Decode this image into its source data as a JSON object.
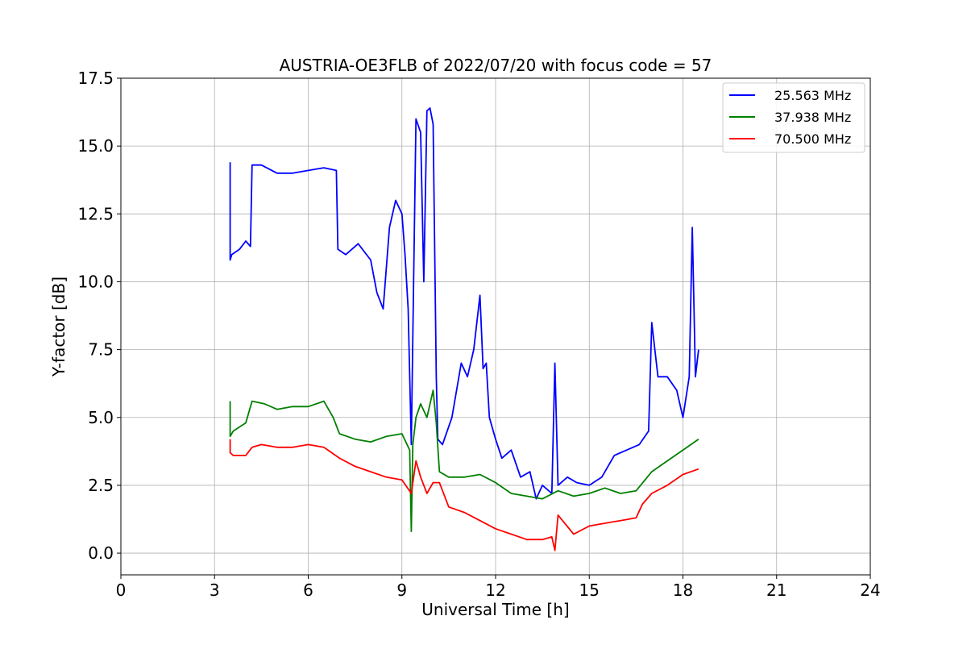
{
  "chart_data": {
    "type": "line",
    "title": "AUSTRIA-OE3FLB of 2022/07/20 with focus code = 57",
    "xlabel": "Universal Time [h]",
    "ylabel": "Y-factor [dB]",
    "xlim": [
      0,
      24
    ],
    "ylim": [
      -0.8,
      17.5
    ],
    "xticks": [
      0,
      3,
      6,
      9,
      12,
      15,
      18,
      21,
      24
    ],
    "yticks": [
      0.0,
      2.5,
      5.0,
      7.5,
      10.0,
      12.5,
      15.0,
      17.5
    ],
    "xtick_labels": [
      "0",
      "3",
      "6",
      "9",
      "12",
      "15",
      "18",
      "21",
      "24"
    ],
    "ytick_labels": [
      "0.0",
      "2.5",
      "5.0",
      "7.5",
      "10.0",
      "12.5",
      "15.0",
      "17.5"
    ],
    "grid": true,
    "legend_position": "top-right",
    "series": [
      {
        "name": "25.563 MHz",
        "color": "#0000ff",
        "x": [
          3.5,
          3.5,
          3.55,
          3.8,
          4.0,
          4.15,
          4.2,
          4.5,
          5.0,
          5.5,
          6.0,
          6.5,
          6.9,
          6.95,
          7.2,
          7.6,
          8.0,
          8.2,
          8.4,
          8.6,
          8.8,
          9.0,
          9.1,
          9.2,
          9.3,
          9.35,
          9.45,
          9.6,
          9.7,
          9.8,
          9.9,
          10.0,
          10.1,
          10.15,
          10.3,
          10.6,
          10.9,
          11.1,
          11.3,
          11.5,
          11.6,
          11.7,
          11.8,
          12.0,
          12.2,
          12.5,
          12.8,
          13.1,
          13.3,
          13.5,
          13.8,
          13.9,
          14.0,
          14.3,
          14.6,
          15.0,
          15.4,
          15.8,
          16.2,
          16.6,
          16.9,
          17.0,
          17.2,
          17.5,
          17.8,
          18.0,
          18.2,
          18.3,
          18.4,
          18.5
        ],
        "values": [
          14.4,
          10.8,
          11.0,
          11.2,
          11.5,
          11.3,
          14.3,
          14.3,
          14.0,
          14.0,
          14.1,
          14.2,
          14.1,
          11.2,
          11.0,
          11.4,
          10.8,
          9.6,
          9.0,
          12.0,
          13.0,
          12.5,
          11.0,
          9.0,
          4.0,
          8.0,
          16.0,
          15.5,
          10.0,
          16.3,
          16.4,
          15.8,
          6.5,
          4.2,
          4.0,
          5.0,
          7.0,
          6.5,
          7.5,
          9.5,
          6.8,
          7.0,
          5.0,
          4.2,
          3.5,
          3.8,
          2.8,
          3.0,
          2.0,
          2.5,
          2.2,
          7.0,
          2.5,
          2.8,
          2.6,
          2.5,
          2.8,
          3.6,
          3.8,
          4.0,
          4.5,
          8.5,
          6.5,
          6.5,
          6.0,
          5.0,
          6.5,
          12.0,
          6.5,
          7.5
        ]
      },
      {
        "name": "37.938 MHz",
        "color": "#008000",
        "x": [
          3.5,
          3.5,
          3.6,
          4.0,
          4.2,
          4.6,
          5.0,
          5.5,
          6.0,
          6.5,
          6.8,
          7.0,
          7.5,
          8.0,
          8.5,
          9.0,
          9.25,
          9.3,
          9.35,
          9.45,
          9.6,
          9.8,
          10.0,
          10.1,
          10.2,
          10.5,
          11.0,
          11.5,
          12.0,
          12.5,
          13.0,
          13.5,
          14.0,
          14.5,
          15.0,
          15.5,
          16.0,
          16.5,
          17.0,
          17.5,
          18.0,
          18.5
        ],
        "values": [
          5.6,
          4.3,
          4.5,
          4.8,
          5.6,
          5.5,
          5.3,
          5.4,
          5.4,
          5.6,
          5.0,
          4.4,
          4.2,
          4.1,
          4.3,
          4.4,
          3.8,
          0.8,
          4.0,
          5.0,
          5.5,
          5.0,
          6.0,
          4.8,
          3.0,
          2.8,
          2.8,
          2.9,
          2.6,
          2.2,
          2.1,
          2.0,
          2.3,
          2.1,
          2.2,
          2.4,
          2.2,
          2.3,
          3.0,
          3.4,
          3.8,
          4.2
        ]
      },
      {
        "name": "70.500 MHz",
        "color": "#ff0000",
        "x": [
          3.5,
          3.5,
          3.6,
          4.0,
          4.2,
          4.5,
          5.0,
          5.5,
          6.0,
          6.5,
          7.0,
          7.5,
          8.0,
          8.5,
          9.0,
          9.3,
          9.45,
          9.6,
          9.8,
          10.0,
          10.2,
          10.5,
          11.0,
          11.5,
          12.0,
          12.5,
          13.0,
          13.5,
          13.8,
          13.9,
          14.0,
          14.5,
          15.0,
          15.5,
          16.0,
          16.5,
          16.7,
          17.0,
          17.5,
          18.0,
          18.5
        ],
        "values": [
          4.2,
          3.7,
          3.6,
          3.6,
          3.9,
          4.0,
          3.9,
          3.9,
          4.0,
          3.9,
          3.5,
          3.2,
          3.0,
          2.8,
          2.7,
          2.2,
          3.4,
          2.8,
          2.2,
          2.6,
          2.6,
          1.7,
          1.5,
          1.2,
          0.9,
          0.7,
          0.5,
          0.5,
          0.6,
          0.1,
          1.4,
          0.7,
          1.0,
          1.1,
          1.2,
          1.3,
          1.8,
          2.2,
          2.5,
          2.9,
          3.1
        ]
      }
    ]
  }
}
